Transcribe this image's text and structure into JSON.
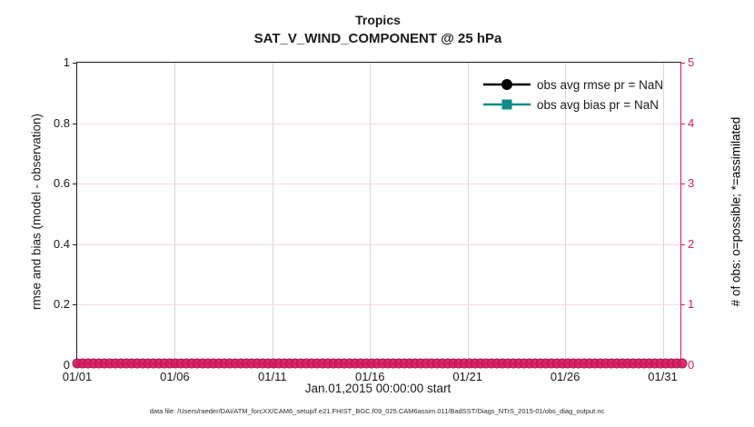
{
  "figure": {
    "title_line1": "Tropics",
    "title_line2": "SAT_V_WIND_COMPONENT @ 25 hPa",
    "xlabel": "Jan.01,2015 00:00:00 start",
    "ylabel_left": "rmse and bias (model - observation)",
    "ylabel_right": "# of obs: o=possible; *=assimilated",
    "footer": "data file: /Users/raeder/DAI/ATM_forcXX/CAM6_setup/f.e21.FHIST_BGC.f09_025.CAM6assim.011/BadSST/Diags_NTrS_2015-01/obs_diag_output.nc"
  },
  "colors": {
    "axis_left": "#1a1a1a",
    "axis_right": "#d81b60",
    "rmse": "#000000",
    "bias": "#0e8b8b",
    "obs_band": "#d81b60",
    "obs_band_edge": "#b3134e",
    "grid_vertical": "#d8d8d8",
    "grid_horizontal": "#f5d7e4"
  },
  "legend": {
    "items": [
      {
        "label": "obs avg rmse pr = NaN",
        "marker": "circle"
      },
      {
        "label": "obs avg bias pr = NaN",
        "marker": "square"
      }
    ]
  },
  "chart_data": {
    "type": "line",
    "title": "Tropics",
    "subtitle": "SAT_V_WIND_COMPONENT @ 25 hPa",
    "x_axis": {
      "label": "Jan.01,2015 00:00:00 start",
      "tick_labels": [
        "01/01",
        "01/06",
        "01/11",
        "01/16",
        "01/21",
        "01/26",
        "01/31"
      ],
      "tick_days": [
        0,
        5,
        10,
        15,
        20,
        25,
        30
      ],
      "range_days": [
        0,
        31
      ]
    },
    "y_axis_left": {
      "label": "rmse and bias (model - observation)",
      "ticks": [
        0,
        0.2,
        0.4,
        0.6,
        0.8,
        1
      ],
      "range": [
        0,
        1
      ]
    },
    "y_axis_right": {
      "label": "# of obs: o=possible; *=assimilated",
      "ticks": [
        0,
        1,
        2,
        3,
        4,
        5
      ],
      "range": [
        0,
        5
      ]
    },
    "series": [
      {
        "name": "obs avg rmse pr = NaN",
        "values": "NaN",
        "note": "no line plotted, legend entry only"
      },
      {
        "name": "obs avg bias pr = NaN",
        "values": "NaN",
        "note": "no line plotted, legend entry only"
      },
      {
        "name": "# of obs possible (o markers)",
        "constant_value": 0,
        "note": "dense row of overlapping pink circle markers along y=0 across the full x range"
      }
    ],
    "grid": true,
    "legend_position": "upper right inside, no box"
  }
}
